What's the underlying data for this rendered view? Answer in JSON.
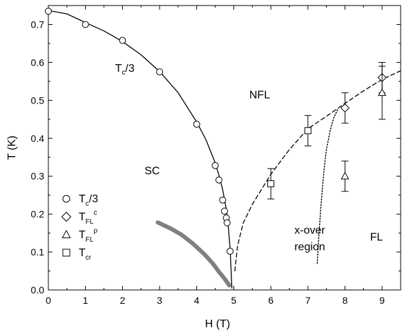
{
  "chart_data": {
    "type": "scatter",
    "title": "",
    "xlabel": "H (T)",
    "ylabel": "T (K)",
    "xlim": [
      0,
      9.5
    ],
    "ylim": [
      0,
      0.75
    ],
    "x_ticks": [
      0,
      1,
      2,
      3,
      4,
      5,
      6,
      7,
      8,
      9
    ],
    "y_ticks": [
      0.0,
      0.1,
      0.2,
      0.3,
      0.4,
      0.5,
      0.6,
      0.7
    ],
    "grid": false,
    "legend_position": "lower-left",
    "series": [
      {
        "name_main": "T",
        "name_sub": "c",
        "name_suffix": "/3",
        "marker": "circle",
        "x": [
          0,
          1,
          2,
          3,
          4,
          4.5,
          4.6,
          4.7,
          4.75,
          4.8,
          4.82,
          4.9
        ],
        "y": [
          0.735,
          0.7,
          0.658,
          0.575,
          0.437,
          0.328,
          0.29,
          0.237,
          0.208,
          0.19,
          0.177,
          0.102
        ],
        "yerr": []
      },
      {
        "name_main": "T",
        "name_sub": "FL",
        "name_sup": "c",
        "marker": "diamond",
        "x": [
          8,
          9
        ],
        "y": [
          0.48,
          0.56
        ],
        "yerr": [
          0.04,
          0.04
        ]
      },
      {
        "name_main": "T",
        "name_sub": "FL",
        "name_sup": "ρ",
        "marker": "triangle",
        "x": [
          8,
          9
        ],
        "y": [
          0.3,
          0.52
        ],
        "yerr": [
          0.04,
          0.07
        ]
      },
      {
        "name_main": "T",
        "name_sub": "cr",
        "marker": "square",
        "x": [
          6,
          7
        ],
        "y": [
          0.28,
          0.42
        ],
        "yerr": [
          0.04,
          0.04
        ]
      }
    ],
    "lines": [
      {
        "style": "solid",
        "color": "#000000",
        "x": [
          0,
          0.5,
          1,
          1.5,
          2,
          2.5,
          3,
          3.5,
          4,
          4.25,
          4.5,
          4.6,
          4.7,
          4.8,
          4.85,
          4.9,
          4.95
        ],
        "y": [
          0.737,
          0.728,
          0.705,
          0.683,
          0.655,
          0.62,
          0.576,
          0.52,
          0.443,
          0.396,
          0.335,
          0.303,
          0.265,
          0.212,
          0.17,
          0.11,
          0.005
        ]
      },
      {
        "style": "dashed",
        "color": "#000000",
        "x": [
          5.03,
          5.1,
          5.25,
          5.5,
          6,
          6.5,
          7,
          7.5,
          8,
          8.5,
          9,
          9.5
        ],
        "y": [
          0.05,
          0.115,
          0.175,
          0.226,
          0.305,
          0.37,
          0.425,
          0.458,
          0.492,
          0.525,
          0.555,
          0.578
        ]
      },
      {
        "style": "dotted",
        "color": "#000000",
        "x": [
          7.25,
          7.3,
          7.35,
          7.4,
          7.45,
          7.5,
          7.6,
          7.7,
          7.8
        ],
        "y": [
          0.07,
          0.15,
          0.22,
          0.28,
          0.33,
          0.37,
          0.42,
          0.455,
          0.475
        ]
      },
      {
        "style": "thick",
        "color": "#808080",
        "x": [
          2.95,
          3.3,
          3.6,
          3.9,
          4.2,
          4.45,
          4.6,
          4.75,
          4.88
        ],
        "y": [
          0.178,
          0.162,
          0.145,
          0.122,
          0.095,
          0.068,
          0.048,
          0.03,
          0.012
        ]
      }
    ],
    "annotations": [
      {
        "name": "annotation-tc3",
        "main": "T",
        "sub": "c",
        "suffix": "/3",
        "x": 1.8,
        "y": 0.575
      },
      {
        "name": "region-label-nfl",
        "text": "NFL",
        "x": 5.7,
        "y": 0.505
      },
      {
        "name": "region-label-sc",
        "text": "SC",
        "x": 2.8,
        "y": 0.305
      },
      {
        "name": "region-label-xover-1",
        "text": "x-over",
        "x": 7.05,
        "y": 0.148
      },
      {
        "name": "region-label-xover-2",
        "text": "region",
        "x": 7.05,
        "y": 0.105
      },
      {
        "name": "region-label-fl",
        "text": "FL",
        "x": 8.85,
        "y": 0.13
      }
    ]
  }
}
